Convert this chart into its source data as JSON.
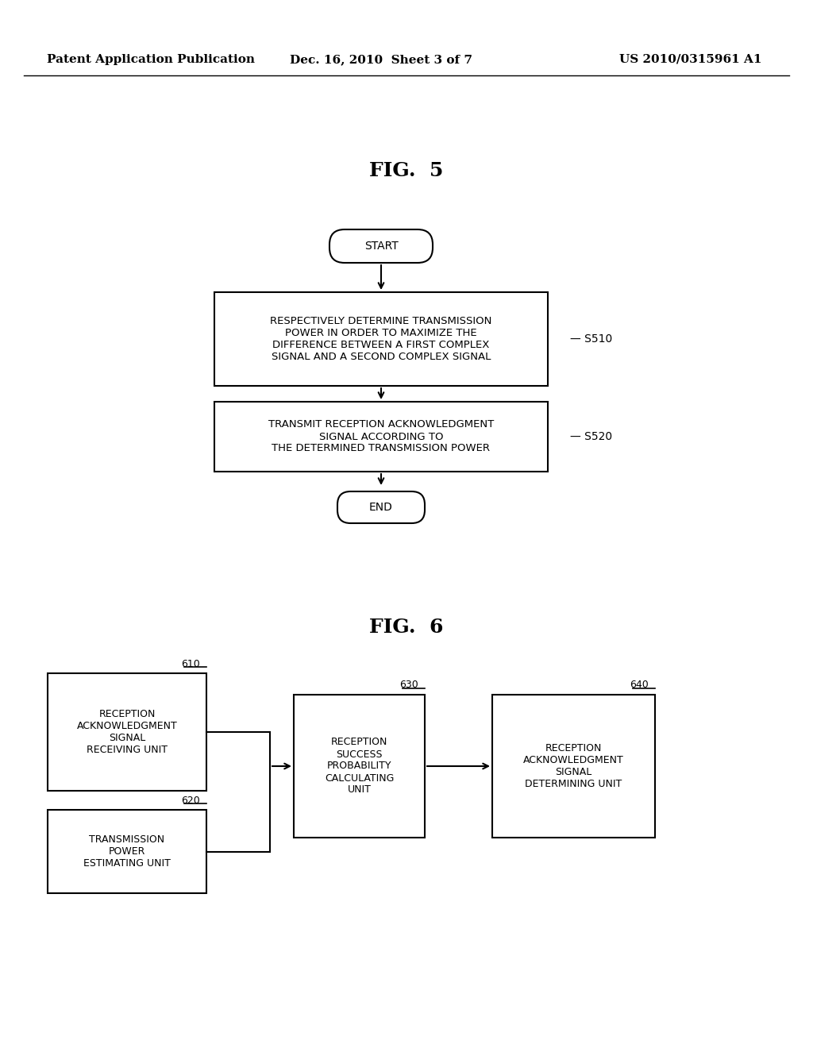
{
  "bg_color": "#ffffff",
  "header_left": "Patent Application Publication",
  "header_mid": "Dec. 16, 2010  Sheet 3 of 7",
  "header_right": "US 2010/0315961 A1",
  "fig5_title": "FIG.  5",
  "fig6_title": "FIG.  6",
  "start_label": "START",
  "end_label": "END",
  "box1_text": "RESPECTIVELY DETERMINE TRANSMISSION\nPOWER IN ORDER TO MAXIMIZE THE\nDIFFERENCE BETWEEN A FIRST COMPLEX\nSIGNAL AND A SECOND COMPLEX SIGNAL",
  "box1_label": "S510",
  "box2_text": "TRANSMIT RECEPTION ACKNOWLEDGMENT\nSIGNAL ACCORDING TO\nTHE DETERMINED TRANSMISSION POWER",
  "box2_label": "S520",
  "box610_label": "610",
  "box610_text": "RECEPTION\nACKNOWLEDGMENT\nSIGNAL\nRECEIVING UNIT",
  "box620_label": "620",
  "box620_text": "TRANSMISSION\nPOWER\nESTIMATING UNIT",
  "box630_label": "630",
  "box630_text": "RECEPTION\nSUCCESS\nPROBABILITY\nCALCULATING\nUNIT",
  "box640_label": "640",
  "box640_text": "RECEPTION\nACKNOWLEDGMENT\nSIGNAL\nDETERMINING UNIT"
}
